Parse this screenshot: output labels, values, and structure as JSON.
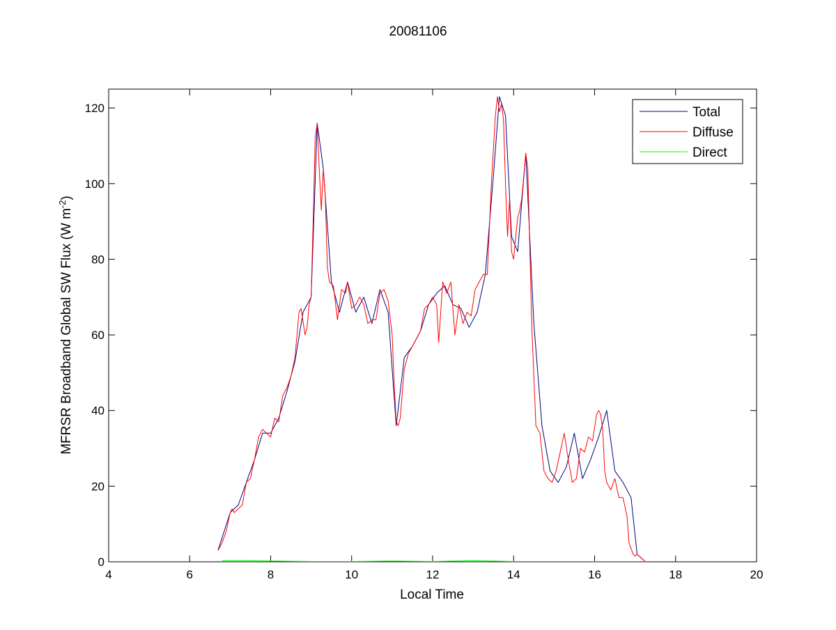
{
  "chart_data": {
    "type": "line",
    "title": "20081106",
    "xlabel": "Local Time",
    "ylabel": {
      "text": "MFRSR Broadband Global SW Flux (W m",
      "sup": "-2",
      "suffix": ")"
    },
    "xlim": [
      4,
      20
    ],
    "ylim": [
      0,
      125
    ],
    "xticks": [
      4,
      6,
      8,
      10,
      12,
      14,
      16,
      18,
      20
    ],
    "yticks": [
      0,
      20,
      40,
      60,
      80,
      100,
      120
    ],
    "grid": false,
    "legend_position": "top-right",
    "series": [
      {
        "name": "Total",
        "color": "#00007f",
        "x": [
          6.7,
          7.0,
          7.2,
          7.4,
          7.6,
          7.8,
          8.0,
          8.2,
          8.4,
          8.6,
          8.8,
          9.0,
          9.15,
          9.3,
          9.5,
          9.7,
          9.9,
          10.1,
          10.3,
          10.5,
          10.7,
          10.9,
          11.1,
          11.3,
          11.5,
          11.7,
          11.9,
          12.1,
          12.3,
          12.5,
          12.7,
          12.9,
          13.1,
          13.3,
          13.5,
          13.65,
          13.8,
          13.95,
          14.1,
          14.3,
          14.5,
          14.7,
          14.9,
          15.1,
          15.3,
          15.5,
          15.7,
          15.9,
          16.1,
          16.3,
          16.5,
          16.7,
          16.9,
          17.05,
          17.2
        ],
        "y": [
          3,
          13,
          15,
          21,
          27,
          34,
          34,
          38,
          45,
          53,
          66,
          70,
          116,
          104,
          74,
          66,
          74,
          66,
          70,
          63,
          72,
          66,
          36,
          54,
          57,
          61,
          68,
          71,
          73,
          68,
          67,
          62,
          66,
          76,
          102,
          123,
          118,
          86,
          82,
          108,
          63,
          36,
          24,
          21,
          25,
          34,
          22,
          27,
          33,
          40,
          24,
          21,
          17,
          2,
          0.5
        ]
      },
      {
        "name": "Diffuse",
        "color": "#ff0000",
        "x": [
          6.7,
          6.8,
          6.9,
          7.0,
          7.05,
          7.1,
          7.2,
          7.3,
          7.4,
          7.5,
          7.6,
          7.7,
          7.8,
          7.9,
          8.0,
          8.1,
          8.2,
          8.3,
          8.4,
          8.5,
          8.6,
          8.7,
          8.75,
          8.85,
          8.9,
          8.95,
          9.0,
          9.05,
          9.1,
          9.15,
          9.2,
          9.25,
          9.3,
          9.35,
          9.4,
          9.45,
          9.55,
          9.65,
          9.75,
          9.85,
          9.9,
          10.0,
          10.1,
          10.2,
          10.3,
          10.4,
          10.5,
          10.6,
          10.7,
          10.8,
          10.9,
          11.0,
          11.05,
          11.1,
          11.15,
          11.2,
          11.3,
          11.4,
          11.5,
          11.6,
          11.7,
          11.8,
          11.9,
          12.0,
          12.1,
          12.15,
          12.25,
          12.35,
          12.45,
          12.55,
          12.65,
          12.75,
          12.85,
          12.95,
          13.05,
          13.15,
          13.25,
          13.35,
          13.45,
          13.55,
          13.6,
          13.65,
          13.7,
          13.75,
          13.8,
          13.85,
          13.9,
          13.95,
          14.0,
          14.05,
          14.1,
          14.15,
          14.2,
          14.3,
          14.35,
          14.45,
          14.55,
          14.65,
          14.75,
          14.85,
          14.95,
          15.05,
          15.15,
          15.25,
          15.35,
          15.45,
          15.55,
          15.65,
          15.75,
          15.85,
          15.95,
          16.05,
          16.1,
          16.15,
          16.2,
          16.25,
          16.3,
          16.4,
          16.5,
          16.6,
          16.7,
          16.8,
          16.85,
          16.95,
          17.0,
          17.05,
          17.1,
          17.2,
          17.25
        ],
        "y": [
          3,
          5,
          8,
          13,
          14,
          13,
          14,
          15,
          21,
          22,
          27,
          33,
          35,
          34,
          33,
          38,
          37,
          44,
          46,
          49,
          54,
          66,
          67,
          60,
          62,
          68,
          70,
          90,
          112,
          116,
          104,
          93,
          104,
          96,
          78,
          74,
          73,
          64,
          72,
          71,
          74,
          67,
          68,
          70,
          68,
          63,
          64,
          64,
          71,
          72,
          69,
          60,
          47,
          37,
          36,
          38,
          51,
          55,
          57,
          59,
          61,
          67,
          68,
          70,
          68,
          58,
          74,
          71,
          74,
          60,
          68,
          63,
          66,
          65,
          72,
          74,
          76,
          76,
          100,
          118,
          123,
          119,
          121,
          117,
          100,
          86,
          96,
          82,
          80,
          86,
          91,
          93,
          96,
          108,
          104,
          62,
          36,
          34,
          24,
          22,
          21,
          24,
          29,
          34,
          27,
          21,
          22,
          30,
          29,
          33,
          32,
          39,
          40,
          39,
          35,
          24,
          21,
          19,
          22,
          17,
          17,
          12,
          5,
          2,
          1.5,
          2,
          1.5,
          0.5,
          0.3
        ]
      },
      {
        "name": "Direct",
        "color": "#00ff00",
        "x": [
          6.8,
          7.5,
          8.0,
          9.0,
          10.0,
          11.0,
          12.0,
          13.0,
          14.0,
          15.0,
          16.0,
          17.0,
          17.1
        ],
        "y": [
          0.3,
          0.3,
          0.2,
          0.1,
          0.1,
          0.2,
          0.1,
          0.3,
          0.1,
          0.1,
          0.1,
          0.1,
          0.1
        ]
      }
    ]
  }
}
